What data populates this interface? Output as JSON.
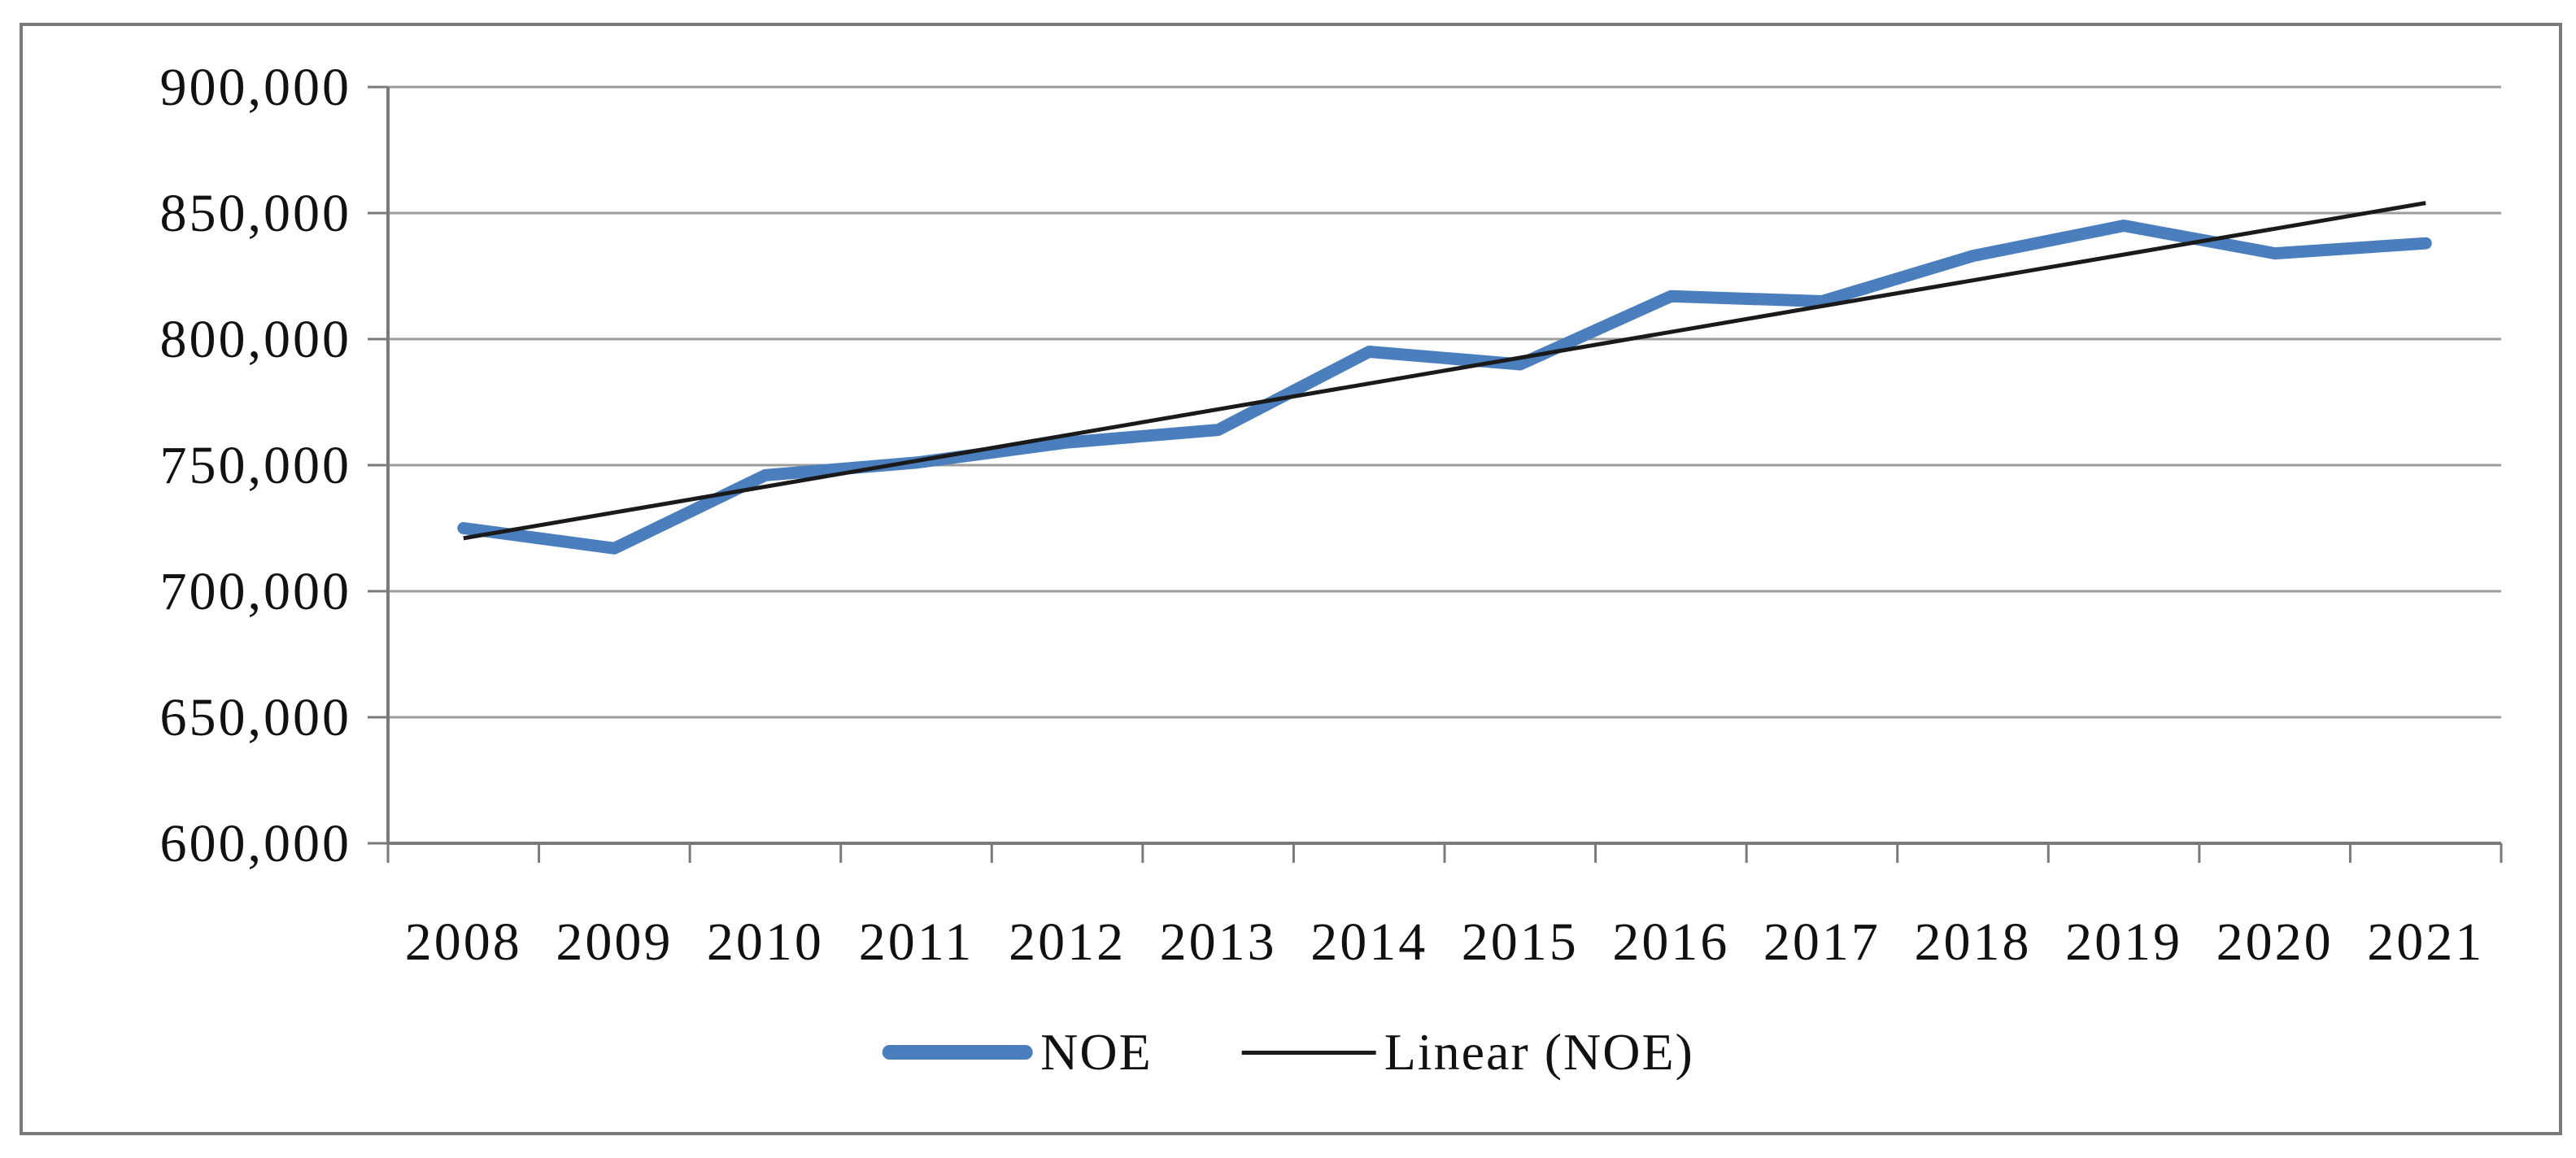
{
  "figure": {
    "background_color": "#ffffff",
    "border_color": "#7a7a7a"
  },
  "chart_data": {
    "type": "line",
    "title": "",
    "xlabel": "",
    "ylabel": "",
    "categories": [
      "2008",
      "2009",
      "2010",
      "2011",
      "2012",
      "2013",
      "2014",
      "2015",
      "2016",
      "2017",
      "2018",
      "2019",
      "2020",
      "2021"
    ],
    "series": [
      {
        "name": "NOE",
        "color": "#4A7EBD",
        "stroke_width": 15,
        "values": [
          725000,
          717000,
          746000,
          751000,
          759000,
          764000,
          795000,
          790000,
          817000,
          815000,
          833000,
          845000,
          834000,
          838000
        ]
      },
      {
        "name": "Linear (NOE)",
        "color": "#1a1a1a",
        "stroke_width": 5,
        "type": "linear-trendline",
        "endpoint_values": [
          721000,
          854000
        ]
      }
    ],
    "ylim": [
      600000,
      900000
    ],
    "y_tick_step": 50000,
    "y_tick_labels": [
      "600,000",
      "650,000",
      "700,000",
      "750,000",
      "800,000",
      "850,000",
      "900,000"
    ],
    "grid": true,
    "gridline_color": "#9c9c9c",
    "axis_color": "#7a7a7a",
    "legend_position": "bottom-center"
  },
  "legend": {
    "noe_label": "NOE",
    "linear_label": "Linear (NOE)"
  }
}
